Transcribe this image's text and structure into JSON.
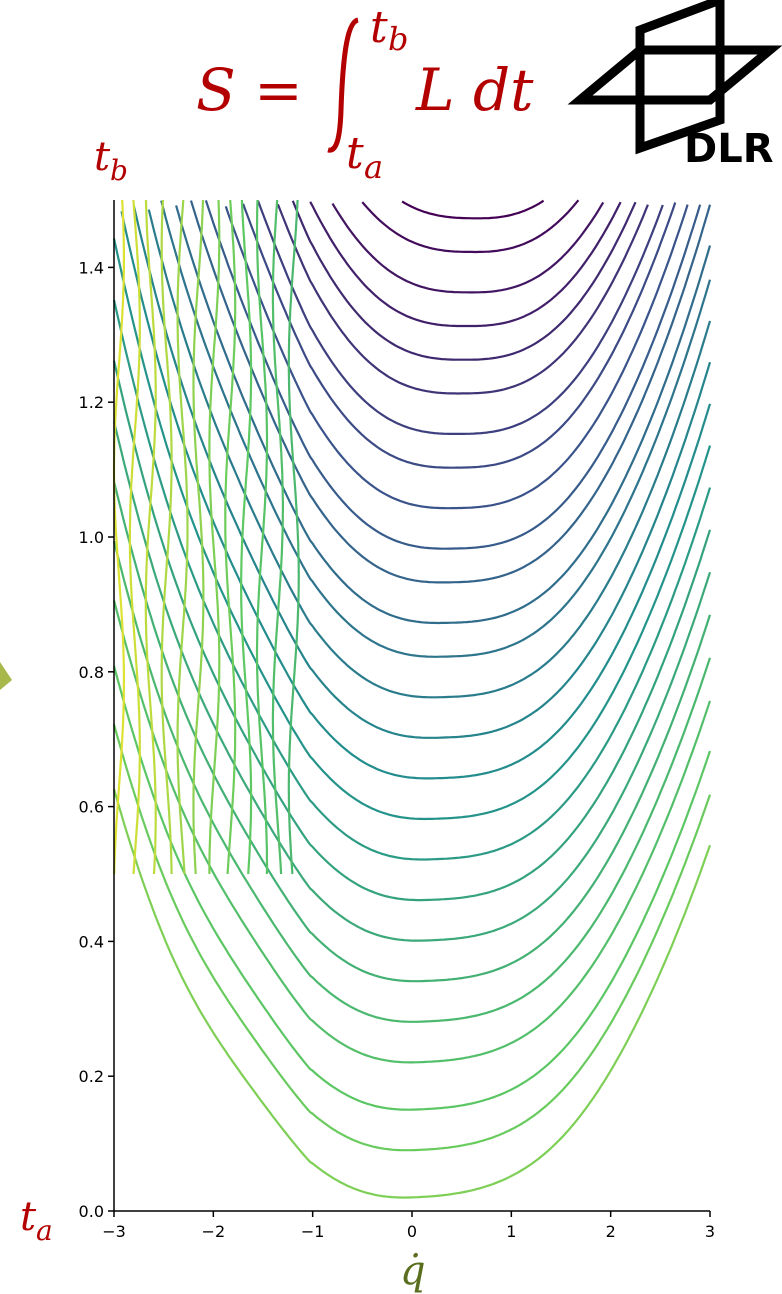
{
  "header": {
    "formula_lhs": "S =",
    "integral_upper": "t",
    "integral_upper_sub": "b",
    "integral_lower": "t",
    "integral_lower_sub": "a",
    "integrand": "L dt",
    "t_b_label": "t",
    "t_b_sub": "b",
    "t_a_label": "t",
    "t_a_sub": "a",
    "formula_color": "#b30000"
  },
  "logo": {
    "text": "DLR",
    "icon": "dlr-logo-icon"
  },
  "chart_data": {
    "type": "contour",
    "xlabel": "q̇",
    "xlim": [
      -3,
      3
    ],
    "ylim": [
      0,
      1.5
    ],
    "xticks": [
      "−3",
      "−2",
      "−1",
      "0",
      "1",
      "2",
      "3"
    ],
    "yticks": [
      "0.0",
      "0.2",
      "0.4",
      "0.6",
      "0.8",
      "1.0",
      "1.2",
      "1.4"
    ],
    "colormap": "viridis",
    "grid": false,
    "valley_minima_y": [
      0.02,
      0.09,
      0.15,
      0.22,
      0.28,
      0.34,
      0.4,
      0.46,
      0.52,
      0.58,
      0.64,
      0.7,
      0.76,
      0.82,
      0.87,
      0.93,
      0.98,
      1.04,
      1.1,
      1.15,
      1.21,
      1.26,
      1.31,
      1.36,
      1.42,
      1.47
    ],
    "xlabel_color": "#5a6e1e"
  }
}
